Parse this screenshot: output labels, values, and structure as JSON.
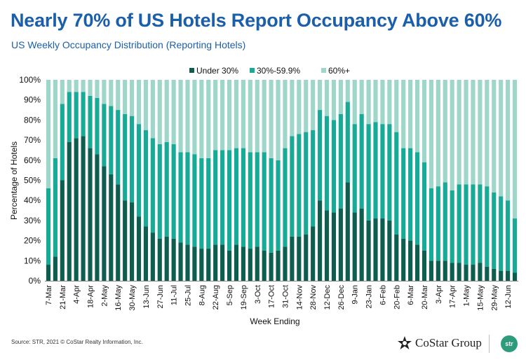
{
  "header": {
    "title": "Nearly 70% of US Hotels Report Occupancy Above 60%",
    "subtitle": "US Weekly Occupancy Distribution (Reporting Hotels)"
  },
  "footer": {
    "source": "Source: STR, 2021 © CoStar Realty Information, Inc.",
    "costar_logo_text": "CoStar Group",
    "str_logo_text": "str"
  },
  "colors": {
    "under30": "#0d5e4f",
    "mid": "#17ab97",
    "over60": "#9ed6c9",
    "title": "#1b5faa"
  },
  "chart_data": {
    "type": "bar",
    "stacked": true,
    "xlabel": "Week Ending",
    "ylabel": "Percentage of Hotels",
    "ylim": [
      0,
      100
    ],
    "yticks": [
      "0%",
      "10%",
      "20%",
      "30%",
      "40%",
      "50%",
      "60%",
      "70%",
      "80%",
      "90%",
      "100%"
    ],
    "legend_position": "top",
    "x_tick_labels": [
      "7-Mar",
      "21-Mar",
      "4-Apr",
      "18-Apr",
      "2-May",
      "16-May",
      "30-May",
      "13-Jun",
      "27-Jun",
      "11-Jul",
      "25-Jul",
      "8-Aug",
      "22-Aug",
      "5-Sep",
      "19-Sep",
      "3-Oct",
      "17-Oct",
      "31-Oct",
      "14-Nov",
      "28-Nov",
      "12-Dec",
      "26-Dec",
      "9-Jan",
      "23-Jan",
      "6-Feb",
      "20-Feb",
      "6-Mar",
      "20-Mar",
      "3-Apr",
      "17-Apr",
      "1-May",
      "15-May",
      "29-May",
      "12-Jun"
    ],
    "series": [
      {
        "name": "Under 30%",
        "values": [
          8,
          12,
          50,
          69,
          71,
          72,
          66,
          63,
          57,
          53,
          48,
          40,
          39,
          32,
          27,
          24,
          21,
          22,
          21,
          19,
          18,
          17,
          16,
          16,
          18,
          18,
          15,
          18,
          17,
          16,
          17,
          15,
          14,
          15,
          17,
          22,
          22,
          23,
          27,
          40,
          35,
          34,
          36,
          49,
          34,
          36,
          30,
          31,
          31,
          30,
          23,
          21,
          20,
          18,
          15,
          10,
          10,
          10,
          9,
          9,
          8,
          8,
          9,
          7,
          6,
          5,
          5,
          4
        ]
      },
      {
        "name": "30%-59.9%",
        "values": [
          38,
          49,
          38,
          25,
          23,
          22,
          26,
          28,
          31,
          34,
          37,
          43,
          43,
          46,
          48,
          47,
          47,
          47,
          47,
          45,
          46,
          46,
          45,
          45,
          47,
          47,
          50,
          48,
          49,
          48,
          47,
          49,
          47,
          45,
          49,
          50,
          51,
          51,
          48,
          45,
          47,
          46,
          47,
          40,
          44,
          47,
          48,
          48,
          47,
          48,
          51,
          45,
          46,
          46,
          44,
          36,
          37,
          39,
          36,
          39,
          40,
          40,
          39,
          40,
          38,
          37,
          35,
          27
        ]
      },
      {
        "name": "60%+",
        "values": [
          54,
          39,
          12,
          6,
          6,
          6,
          8,
          9,
          12,
          13,
          15,
          17,
          18,
          22,
          25,
          29,
          32,
          31,
          32,
          36,
          36,
          37,
          39,
          39,
          35,
          35,
          35,
          34,
          34,
          36,
          36,
          36,
          39,
          40,
          34,
          28,
          27,
          26,
          25,
          15,
          18,
          20,
          17,
          11,
          22,
          17,
          22,
          21,
          22,
          22,
          26,
          34,
          34,
          36,
          41,
          54,
          53,
          51,
          55,
          52,
          52,
          52,
          52,
          53,
          56,
          58,
          60,
          69
        ]
      }
    ]
  }
}
